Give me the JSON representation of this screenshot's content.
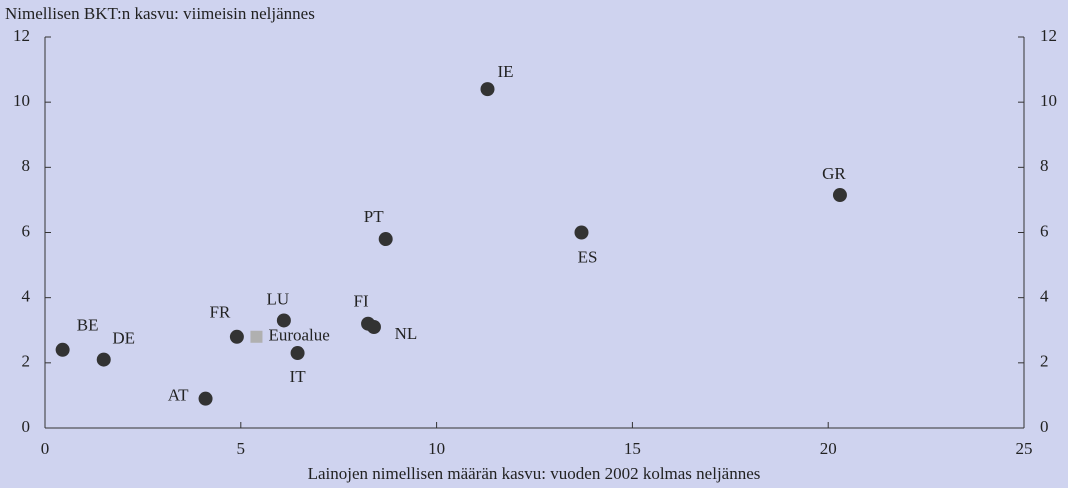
{
  "chart_data": {
    "type": "scatter",
    "title": "Nimellisen BKT:n kasvu: viimeisin neljännes",
    "xlabel": "Lainojen nimellisen määrän kasvu: vuoden 2002 kolmas neljännes",
    "xlim": [
      0,
      25
    ],
    "xticks": [
      0,
      5,
      10,
      15,
      20,
      25
    ],
    "ylim": [
      0,
      12
    ],
    "yticks": [
      0,
      2,
      4,
      6,
      8,
      10,
      12
    ],
    "y2lim": [
      0,
      12
    ],
    "y2ticks": [
      0,
      2,
      4,
      6,
      8,
      10,
      12
    ],
    "background": "#cfd3ef",
    "series": [
      {
        "labels": [
          "BE",
          "DE",
          "AT",
          "FR",
          "LU",
          "IT",
          "FI",
          "NL",
          "PT",
          "IE",
          "ES",
          "GR"
        ],
        "x": [
          0.45,
          1.5,
          4.1,
          4.9,
          6.1,
          6.45,
          8.25,
          8.4,
          8.7,
          11.3,
          13.7,
          20.3
        ],
        "values": [
          2.4,
          2.1,
          0.9,
          2.8,
          3.3,
          2.3,
          3.2,
          3.1,
          5.8,
          10.4,
          6.0,
          7.15
        ],
        "color": "#333333",
        "marker": "circle"
      },
      {
        "name": "Euroalue",
        "x": [
          5.4
        ],
        "values": [
          2.8
        ],
        "color": "#b0b0b0",
        "marker": "square"
      }
    ]
  }
}
